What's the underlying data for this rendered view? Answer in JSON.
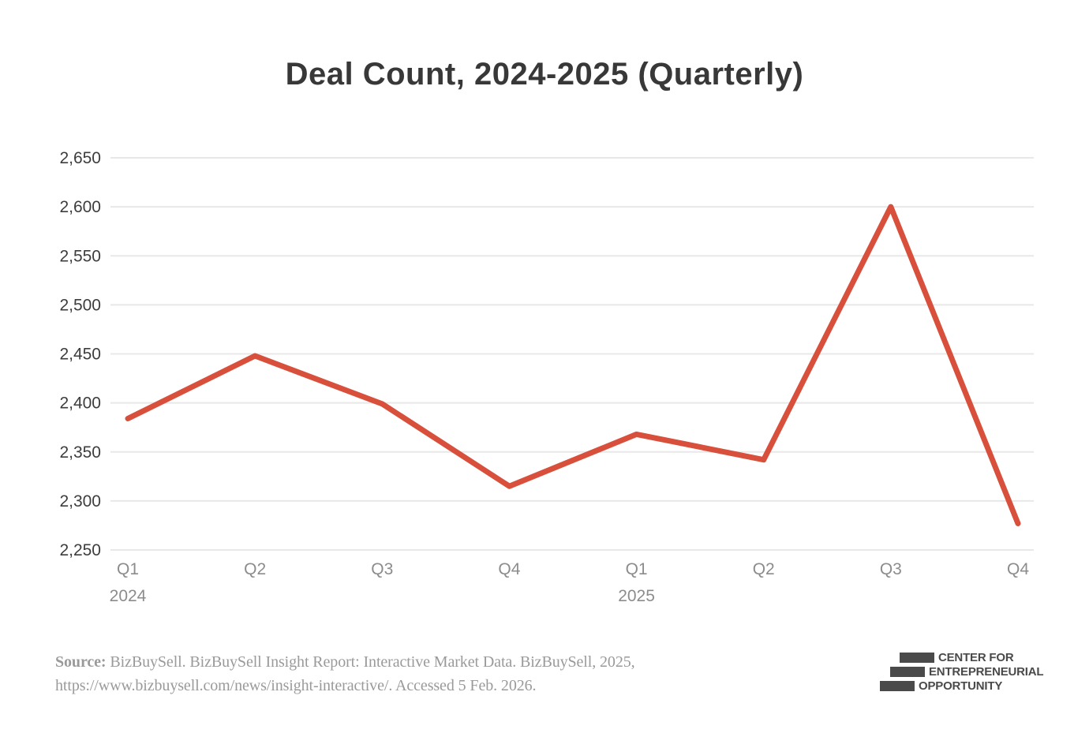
{
  "title": "Deal Count, 2024-2025 (Quarterly)",
  "chart_data": {
    "type": "line",
    "title": "Deal Count, 2024-2025 (Quarterly)",
    "categories": [
      "Q1 2024",
      "Q2 2024",
      "Q3 2024",
      "Q4 2024",
      "Q1 2025",
      "Q2 2025",
      "Q3 2025",
      "Q4 2025"
    ],
    "x_tick_labels": [
      "Q1",
      "Q2",
      "Q3",
      "Q4",
      "Q1",
      "Q2",
      "Q3",
      "Q4"
    ],
    "year_labels": [
      {
        "index": 0,
        "label": "2024"
      },
      {
        "index": 4,
        "label": "2025"
      }
    ],
    "series": [
      {
        "name": "Deal Count",
        "values": [
          2384,
          2448,
          2399,
          2315,
          2368,
          2342,
          2600,
          2277
        ]
      }
    ],
    "ylim": [
      2250,
      2650
    ],
    "ytick_step": 50,
    "grid": true,
    "legend": false,
    "line_color": "#d8503c",
    "gridline_color": "#e8e8e8",
    "ytick_color": "#3d3d3d",
    "xtick_color": "#8c8c8c"
  },
  "source": {
    "prefix": "Source:",
    "line1": " BizBuySell. BizBuySell Insight Report: Interactive Market Data. BizBuySell, 2025,",
    "line2": "https://www.bizbuysell.com/news/insight-interactive/. Accessed 5 Feb. 2026."
  },
  "logo": {
    "lines": [
      "CENTER FOR",
      "ENTREPRENEURIAL",
      "OPPORTUNITY"
    ]
  }
}
